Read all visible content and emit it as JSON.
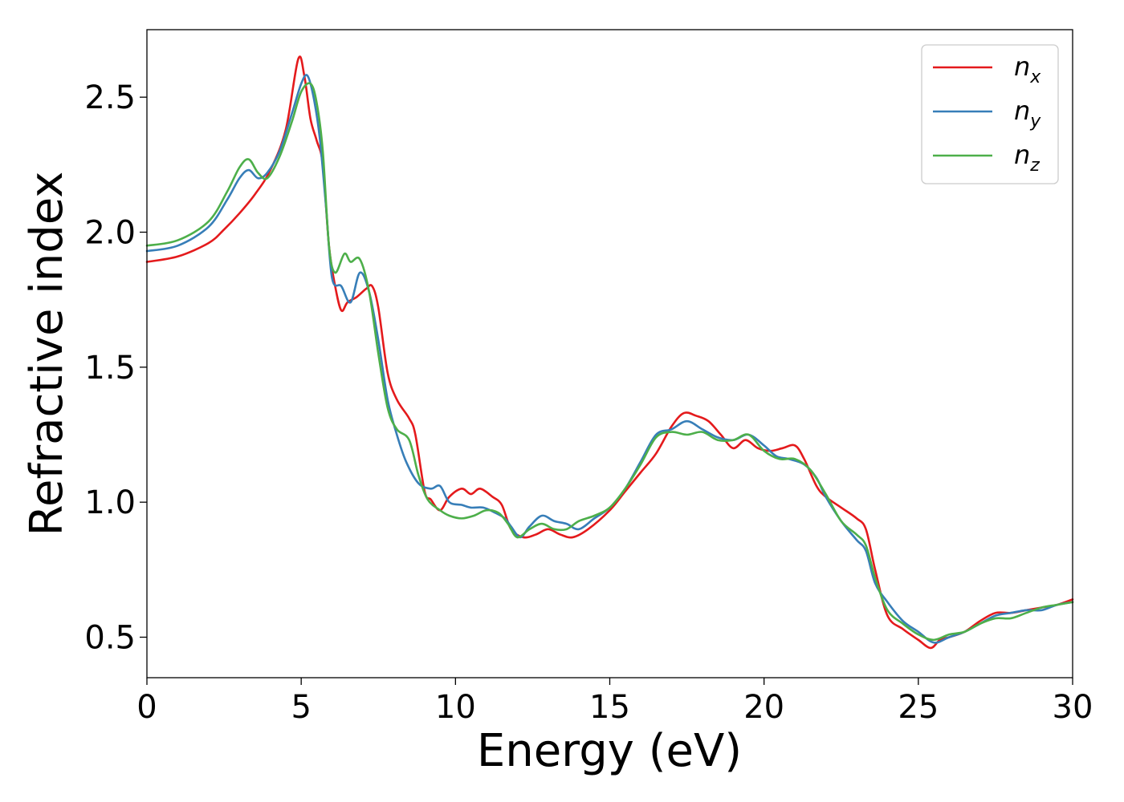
{
  "chart_data": {
    "type": "line",
    "xlabel": "Energy (eV)",
    "ylabel": "Refractive index",
    "xlim": [
      0,
      30
    ],
    "ylim": [
      0.35,
      2.75
    ],
    "xticks": [
      0,
      5,
      10,
      15,
      20,
      25,
      30
    ],
    "xtick_labels": [
      "0",
      "5",
      "10",
      "15",
      "20",
      "25",
      "30"
    ],
    "yticks": [
      0.5,
      1.0,
      1.5,
      2.0,
      2.5
    ],
    "ytick_labels": [
      "0.5",
      "1.0",
      "1.5",
      "2.0",
      "2.5"
    ],
    "grid": false,
    "legend_position": "top-right",
    "series": [
      {
        "name": "n_x",
        "legend_base": "n",
        "legend_sub": "x",
        "color": "#e41a1c",
        "points": [
          [
            0,
            1.89
          ],
          [
            1,
            1.91
          ],
          [
            2,
            1.96
          ],
          [
            2.5,
            2.01
          ],
          [
            3,
            2.07
          ],
          [
            3.5,
            2.14
          ],
          [
            4,
            2.23
          ],
          [
            4.5,
            2.38
          ],
          [
            4.9,
            2.64
          ],
          [
            5.1,
            2.58
          ],
          [
            5.3,
            2.42
          ],
          [
            5.5,
            2.34
          ],
          [
            5.7,
            2.25
          ],
          [
            5.9,
            1.95
          ],
          [
            6.1,
            1.8
          ],
          [
            6.3,
            1.71
          ],
          [
            6.5,
            1.74
          ],
          [
            6.8,
            1.76
          ],
          [
            7.1,
            1.79
          ],
          [
            7.3,
            1.8
          ],
          [
            7.5,
            1.72
          ],
          [
            7.8,
            1.48
          ],
          [
            8.1,
            1.38
          ],
          [
            8.5,
            1.31
          ],
          [
            8.7,
            1.25
          ],
          [
            9,
            1.04
          ],
          [
            9.2,
            1.01
          ],
          [
            9.5,
            0.97
          ],
          [
            9.8,
            1.02
          ],
          [
            10.2,
            1.05
          ],
          [
            10.5,
            1.03
          ],
          [
            10.8,
            1.05
          ],
          [
            11.2,
            1.02
          ],
          [
            11.5,
            0.99
          ],
          [
            11.8,
            0.9
          ],
          [
            12.2,
            0.87
          ],
          [
            12.6,
            0.88
          ],
          [
            13,
            0.9
          ],
          [
            13.4,
            0.88
          ],
          [
            13.8,
            0.87
          ],
          [
            14.3,
            0.9
          ],
          [
            15,
            0.97
          ],
          [
            15.5,
            1.04
          ],
          [
            16,
            1.11
          ],
          [
            16.5,
            1.18
          ],
          [
            17,
            1.28
          ],
          [
            17.4,
            1.33
          ],
          [
            17.8,
            1.32
          ],
          [
            18.2,
            1.3
          ],
          [
            18.6,
            1.25
          ],
          [
            19,
            1.2
          ],
          [
            19.4,
            1.23
          ],
          [
            19.8,
            1.2
          ],
          [
            20.2,
            1.19
          ],
          [
            20.6,
            1.2
          ],
          [
            21,
            1.21
          ],
          [
            21.3,
            1.16
          ],
          [
            21.7,
            1.06
          ],
          [
            22,
            1.02
          ],
          [
            22.5,
            0.98
          ],
          [
            23,
            0.94
          ],
          [
            23.3,
            0.9
          ],
          [
            23.6,
            0.75
          ],
          [
            24,
            0.58
          ],
          [
            24.5,
            0.53
          ],
          [
            25,
            0.49
          ],
          [
            25.4,
            0.46
          ],
          [
            25.7,
            0.49
          ],
          [
            26,
            0.5
          ],
          [
            26.5,
            0.52
          ],
          [
            27,
            0.56
          ],
          [
            27.5,
            0.59
          ],
          [
            28,
            0.59
          ],
          [
            28.5,
            0.6
          ],
          [
            29,
            0.61
          ],
          [
            29.5,
            0.62
          ],
          [
            30,
            0.64
          ]
        ]
      },
      {
        "name": "n_y",
        "legend_base": "n",
        "legend_sub": "y",
        "color": "#377eb8",
        "points": [
          [
            0,
            1.93
          ],
          [
            1,
            1.95
          ],
          [
            2,
            2.02
          ],
          [
            2.6,
            2.12
          ],
          [
            3,
            2.2
          ],
          [
            3.3,
            2.23
          ],
          [
            3.6,
            2.2
          ],
          [
            3.9,
            2.22
          ],
          [
            4.3,
            2.3
          ],
          [
            4.7,
            2.44
          ],
          [
            5,
            2.55
          ],
          [
            5.2,
            2.58
          ],
          [
            5.4,
            2.5
          ],
          [
            5.6,
            2.35
          ],
          [
            5.8,
            2.1
          ],
          [
            6,
            1.83
          ],
          [
            6.3,
            1.8
          ],
          [
            6.6,
            1.74
          ],
          [
            6.9,
            1.85
          ],
          [
            7.2,
            1.78
          ],
          [
            7.5,
            1.6
          ],
          [
            7.8,
            1.38
          ],
          [
            8.1,
            1.25
          ],
          [
            8.4,
            1.15
          ],
          [
            8.8,
            1.07
          ],
          [
            9.2,
            1.05
          ],
          [
            9.5,
            1.06
          ],
          [
            9.8,
            1.0
          ],
          [
            10.2,
            0.99
          ],
          [
            10.5,
            0.98
          ],
          [
            10.9,
            0.98
          ],
          [
            11.3,
            0.96
          ],
          [
            11.6,
            0.94
          ],
          [
            11.8,
            0.91
          ],
          [
            12.1,
            0.87
          ],
          [
            12.4,
            0.91
          ],
          [
            12.8,
            0.95
          ],
          [
            13.2,
            0.93
          ],
          [
            13.6,
            0.92
          ],
          [
            14,
            0.9
          ],
          [
            14.5,
            0.94
          ],
          [
            15,
            0.98
          ],
          [
            15.5,
            1.05
          ],
          [
            16,
            1.15
          ],
          [
            16.5,
            1.25
          ],
          [
            17,
            1.27
          ],
          [
            17.5,
            1.3
          ],
          [
            18,
            1.27
          ],
          [
            18.5,
            1.24
          ],
          [
            19,
            1.23
          ],
          [
            19.5,
            1.25
          ],
          [
            20,
            1.21
          ],
          [
            20.4,
            1.17
          ],
          [
            20.8,
            1.16
          ],
          [
            21.3,
            1.14
          ],
          [
            21.7,
            1.09
          ],
          [
            22,
            1.02
          ],
          [
            22.5,
            0.93
          ],
          [
            23,
            0.86
          ],
          [
            23.3,
            0.82
          ],
          [
            23.6,
            0.7
          ],
          [
            24,
            0.63
          ],
          [
            24.5,
            0.56
          ],
          [
            25,
            0.52
          ],
          [
            25.5,
            0.48
          ],
          [
            26,
            0.5
          ],
          [
            26.5,
            0.52
          ],
          [
            27,
            0.55
          ],
          [
            27.5,
            0.58
          ],
          [
            28,
            0.59
          ],
          [
            28.5,
            0.6
          ],
          [
            29,
            0.6
          ],
          [
            29.5,
            0.62
          ],
          [
            30,
            0.63
          ]
        ]
      },
      {
        "name": "n_z",
        "legend_base": "n",
        "legend_sub": "z",
        "color": "#4daf4a",
        "points": [
          [
            0,
            1.95
          ],
          [
            1,
            1.97
          ],
          [
            2,
            2.04
          ],
          [
            2.6,
            2.15
          ],
          [
            3,
            2.24
          ],
          [
            3.3,
            2.27
          ],
          [
            3.6,
            2.22
          ],
          [
            3.9,
            2.2
          ],
          [
            4.3,
            2.28
          ],
          [
            4.7,
            2.41
          ],
          [
            5,
            2.52
          ],
          [
            5.3,
            2.55
          ],
          [
            5.5,
            2.48
          ],
          [
            5.7,
            2.3
          ],
          [
            5.9,
            1.95
          ],
          [
            6.1,
            1.85
          ],
          [
            6.4,
            1.92
          ],
          [
            6.6,
            1.89
          ],
          [
            6.9,
            1.9
          ],
          [
            7.2,
            1.78
          ],
          [
            7.5,
            1.55
          ],
          [
            7.8,
            1.35
          ],
          [
            8.1,
            1.27
          ],
          [
            8.5,
            1.23
          ],
          [
            8.8,
            1.1
          ],
          [
            9.1,
            1.01
          ],
          [
            9.5,
            0.97
          ],
          [
            9.8,
            0.95
          ],
          [
            10.2,
            0.94
          ],
          [
            10.6,
            0.95
          ],
          [
            11,
            0.97
          ],
          [
            11.4,
            0.96
          ],
          [
            11.7,
            0.92
          ],
          [
            12,
            0.87
          ],
          [
            12.4,
            0.9
          ],
          [
            12.8,
            0.92
          ],
          [
            13.2,
            0.9
          ],
          [
            13.6,
            0.9
          ],
          [
            14,
            0.93
          ],
          [
            14.5,
            0.95
          ],
          [
            15,
            0.98
          ],
          [
            15.5,
            1.05
          ],
          [
            16,
            1.14
          ],
          [
            16.5,
            1.24
          ],
          [
            17,
            1.26
          ],
          [
            17.5,
            1.25
          ],
          [
            18,
            1.26
          ],
          [
            18.5,
            1.23
          ],
          [
            19,
            1.23
          ],
          [
            19.5,
            1.25
          ],
          [
            20,
            1.19
          ],
          [
            20.5,
            1.16
          ],
          [
            21,
            1.16
          ],
          [
            21.5,
            1.12
          ],
          [
            22,
            1.03
          ],
          [
            22.5,
            0.93
          ],
          [
            23,
            0.88
          ],
          [
            23.3,
            0.84
          ],
          [
            23.6,
            0.72
          ],
          [
            24,
            0.6
          ],
          [
            24.5,
            0.55
          ],
          [
            25,
            0.51
          ],
          [
            25.5,
            0.49
          ],
          [
            26,
            0.51
          ],
          [
            26.5,
            0.52
          ],
          [
            27,
            0.55
          ],
          [
            27.5,
            0.57
          ],
          [
            28,
            0.57
          ],
          [
            28.5,
            0.59
          ],
          [
            29,
            0.61
          ],
          [
            29.5,
            0.62
          ],
          [
            30,
            0.63
          ]
        ]
      }
    ]
  }
}
